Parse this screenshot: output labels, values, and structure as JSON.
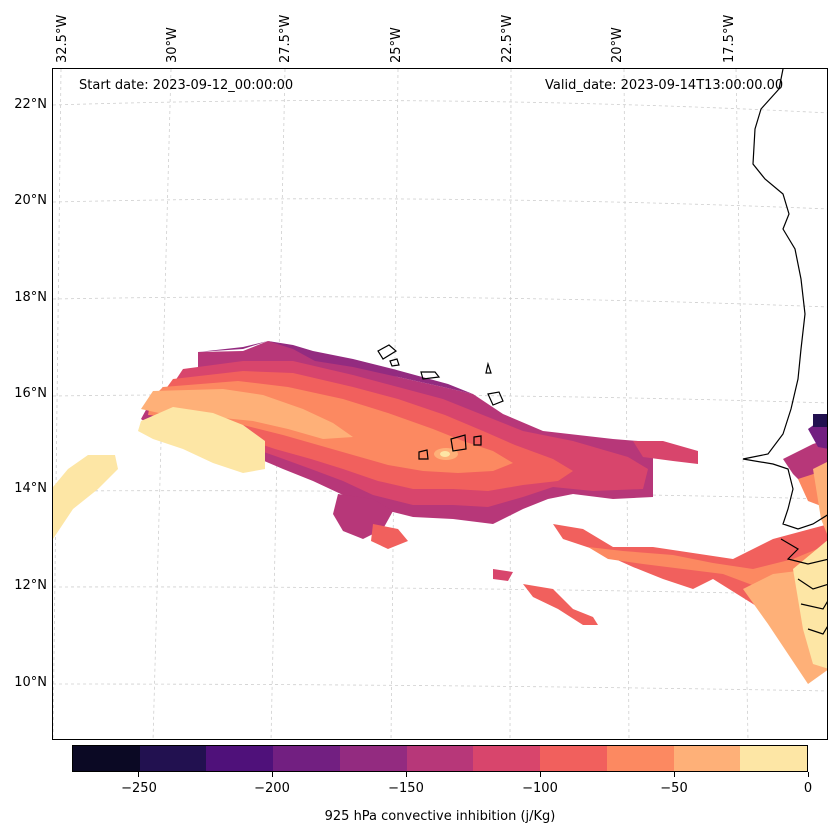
{
  "map": {
    "start_date_text": "Start date: 2023-09-12_00:00:00",
    "valid_date_text": "Valid_date: 2023-09-14T13:00:00.00",
    "lon_labels": [
      "32.5°W",
      "30°W",
      "27.5°W",
      "25°W",
      "22.5°W",
      "20°W",
      "17.5°W"
    ],
    "lat_labels": [
      "22°N",
      "20°N",
      "18°N",
      "16°N",
      "14°N",
      "12°N",
      "10°N"
    ],
    "region": "Eastern tropical Atlantic, Cape Verde islands to West African coast",
    "field": "925 hPa convective inhibition"
  },
  "colorbar": {
    "title": "925 hPa convective inhibition (j/Kg)",
    "tick_labels": [
      "−250",
      "−200",
      "−150",
      "−100",
      "−50",
      "0"
    ],
    "levels": [
      -275,
      -250,
      -225,
      -200,
      -175,
      -150,
      -125,
      -100,
      -75,
      -50,
      -25,
      0
    ],
    "colors": [
      "#0b0924",
      "#221150",
      "#4f117a",
      "#721f81",
      "#932b80",
      "#b73779",
      "#d8456c",
      "#f1605d",
      "#fc8961",
      "#feb078",
      "#fde6a5"
    ]
  },
  "icons": {
    "coastline": "coastline-icon",
    "gridlines": "gridline-icon"
  }
}
